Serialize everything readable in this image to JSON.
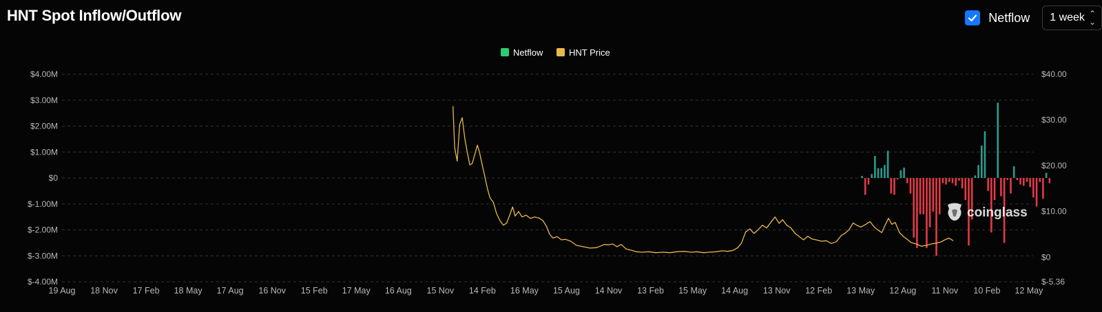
{
  "header": {
    "title": "HNT Spot Inflow/Outflow",
    "netflow_toggle_label": "Netflow",
    "netflow_checked": true,
    "interval_selected": "1 week"
  },
  "watermark": {
    "text": "coinglass",
    "icon": "coinglass-logo-icon"
  },
  "colors": {
    "background": "#050505",
    "inflow": "#2a9d8f",
    "outflow": "#e63946",
    "price": "#e9b949",
    "legend_netflow": "#2ecc71",
    "legend_price": "#e9b949",
    "grid": "#333333",
    "axis_text": "#b8b8b8",
    "checkbox": "#1677ff"
  },
  "chart_data": {
    "type": "bar+line",
    "title": "HNT Spot Inflow/Outflow",
    "legend": {
      "placement": "top-center",
      "items": [
        "Netflow",
        "HNT Price"
      ]
    },
    "grid": {
      "horizontal": true,
      "style": "dashed"
    },
    "x_ticks": [
      "19 Aug",
      "18 Nov",
      "17 Feb",
      "18 May",
      "17 Aug",
      "16 Nov",
      "15 Feb",
      "17 May",
      "16 Aug",
      "15 Nov",
      "14 Feb",
      "16 May",
      "15 Aug",
      "14 Nov",
      "13 Feb",
      "15 May",
      "14 Aug",
      "13 Nov",
      "12 Feb",
      "13 May",
      "12 Aug",
      "11 Nov",
      "10 Feb",
      "12 May"
    ],
    "y_left": {
      "label": "Netflow",
      "range": [
        -4000000,
        4000000
      ],
      "ticks": [
        {
          "value": 4000000,
          "label": "$4.00M"
        },
        {
          "value": 3000000,
          "label": "$3.00M"
        },
        {
          "value": 2000000,
          "label": "$2.00M"
        },
        {
          "value": 1000000,
          "label": "$1.00M"
        },
        {
          "value": 0,
          "label": "$0"
        },
        {
          "value": -1000000,
          "label": "$-1.00M"
        },
        {
          "value": -2000000,
          "label": "$-2.00M"
        },
        {
          "value": -3000000,
          "label": "$-3.00M"
        },
        {
          "value": -4000000,
          "label": "$-4.00M"
        }
      ]
    },
    "y_right": {
      "label": "HNT Price",
      "range": [
        -5.36,
        40
      ],
      "ticks": [
        {
          "value": 40,
          "label": "$40.00"
        },
        {
          "value": 30,
          "label": "$30.00"
        },
        {
          "value": 20,
          "label": "$20.00"
        },
        {
          "value": 10,
          "label": "$10.00"
        },
        {
          "value": 0,
          "label": "$0"
        },
        {
          "value": -5.36,
          "label": "$-5.36"
        }
      ]
    },
    "series": [
      {
        "name": "Netflow",
        "axis": "left",
        "x_index_start": 19.03,
        "x_index_step": 0.0769,
        "values": [
          80000,
          -650000,
          -250000,
          150000,
          850000,
          380000,
          380000,
          500000,
          1050000,
          -600000,
          -650000,
          -50000,
          300000,
          400000,
          -200000,
          -600000,
          -2300000,
          -2700000,
          -1400000,
          -1400000,
          -2700000,
          -1900000,
          -1300000,
          -3000000,
          -1400000,
          -200000,
          -250000,
          -150000,
          -200000,
          -300000,
          -100000,
          -400000,
          -850000,
          -2600000,
          -1600000,
          100000,
          500000,
          1250000,
          1800000,
          -500000,
          -2100000,
          -850000,
          2900000,
          -700000,
          -2500000,
          -80000,
          -600000,
          450000,
          -80000,
          -250000,
          -300000,
          -150000,
          -350000,
          -750000,
          -1100000,
          -150000,
          -800000,
          200000,
          -200000
        ]
      },
      {
        "name": "HNT Price",
        "axis": "right",
        "points": [
          [
            9.3,
            33
          ],
          [
            9.34,
            24
          ],
          [
            9.4,
            21
          ],
          [
            9.46,
            29
          ],
          [
            9.52,
            30.5
          ],
          [
            9.58,
            26
          ],
          [
            9.64,
            23
          ],
          [
            9.7,
            20.2
          ],
          [
            9.76,
            20.5
          ],
          [
            9.82,
            22.5
          ],
          [
            9.88,
            24.5
          ],
          [
            9.93,
            23
          ],
          [
            10.0,
            20
          ],
          [
            10.06,
            17.5
          ],
          [
            10.12,
            15
          ],
          [
            10.18,
            13
          ],
          [
            10.26,
            12
          ],
          [
            10.34,
            9.5
          ],
          [
            10.42,
            8
          ],
          [
            10.5,
            7
          ],
          [
            10.58,
            7.5
          ],
          [
            10.66,
            9.5
          ],
          [
            10.72,
            11
          ],
          [
            10.78,
            9
          ],
          [
            10.86,
            10
          ],
          [
            10.94,
            8.8
          ],
          [
            11.04,
            9.2
          ],
          [
            11.14,
            8.5
          ],
          [
            11.24,
            8.8
          ],
          [
            11.34,
            8.6
          ],
          [
            11.44,
            8
          ],
          [
            11.52,
            6.8
          ],
          [
            11.6,
            5
          ],
          [
            11.68,
            4.2
          ],
          [
            11.78,
            4.5
          ],
          [
            11.88,
            3.8
          ],
          [
            11.98,
            3.9
          ],
          [
            12.1,
            3.5
          ],
          [
            12.24,
            2.6
          ],
          [
            12.4,
            2.3
          ],
          [
            12.56,
            2.0
          ],
          [
            12.72,
            2.1
          ],
          [
            12.9,
            2.8
          ],
          [
            13.0,
            2.7
          ],
          [
            13.1,
            2.9
          ],
          [
            13.2,
            2.3
          ],
          [
            13.3,
            2.8
          ],
          [
            13.42,
            1.8
          ],
          [
            13.52,
            1.6
          ],
          [
            13.66,
            1.2
          ],
          [
            13.8,
            1.1
          ],
          [
            13.96,
            1.2
          ],
          [
            14.12,
            1.0
          ],
          [
            14.3,
            1.1
          ],
          [
            14.46,
            1.0
          ],
          [
            14.62,
            1.2
          ],
          [
            14.8,
            1.3
          ],
          [
            14.96,
            1.1
          ],
          [
            15.1,
            1.2
          ],
          [
            15.26,
            1.0
          ],
          [
            15.4,
            1.1
          ],
          [
            15.56,
            1.2
          ],
          [
            15.7,
            1.4
          ],
          [
            15.84,
            1.3
          ],
          [
            15.96,
            1.5
          ],
          [
            16.06,
            2.0
          ],
          [
            16.16,
            3.0
          ],
          [
            16.26,
            5.5
          ],
          [
            16.36,
            6.2
          ],
          [
            16.46,
            5.2
          ],
          [
            16.56,
            6.0
          ],
          [
            16.66,
            7.0
          ],
          [
            16.76,
            6.4
          ],
          [
            16.86,
            7.6
          ],
          [
            16.96,
            8.8
          ],
          [
            17.06,
            7.4
          ],
          [
            17.14,
            8.2
          ],
          [
            17.24,
            7.0
          ],
          [
            17.34,
            6.4
          ],
          [
            17.44,
            5.2
          ],
          [
            17.54,
            4.5
          ],
          [
            17.64,
            3.8
          ],
          [
            17.74,
            4.6
          ],
          [
            17.84,
            4.0
          ],
          [
            17.94,
            3.8
          ],
          [
            18.06,
            3.5
          ],
          [
            18.18,
            3.6
          ],
          [
            18.3,
            3.0
          ],
          [
            18.42,
            3.4
          ],
          [
            18.54,
            4.8
          ],
          [
            18.62,
            5.2
          ],
          [
            18.72,
            6.0
          ],
          [
            18.82,
            7.5
          ],
          [
            18.9,
            7.0
          ],
          [
            19.0,
            6.6
          ],
          [
            19.12,
            7.2
          ],
          [
            19.22,
            7.8
          ],
          [
            19.32,
            6.6
          ],
          [
            19.4,
            6.0
          ],
          [
            19.5,
            5.4
          ],
          [
            19.58,
            7.0
          ],
          [
            19.66,
            8.5
          ],
          [
            19.74,
            7.2
          ],
          [
            19.82,
            7.6
          ],
          [
            19.92,
            5.4
          ],
          [
            20.02,
            4.5
          ],
          [
            20.12,
            3.8
          ],
          [
            20.2,
            3.2
          ],
          [
            20.32,
            2.9
          ],
          [
            20.44,
            2.4
          ],
          [
            20.56,
            2.6
          ],
          [
            20.68,
            2.9
          ],
          [
            20.8,
            3.1
          ],
          [
            20.9,
            3.3
          ],
          [
            21.0,
            3.8
          ],
          [
            21.1,
            4.2
          ],
          [
            21.2,
            3.6
          ]
        ]
      }
    ],
    "x_index_range": [
      0,
      23.1
    ]
  }
}
